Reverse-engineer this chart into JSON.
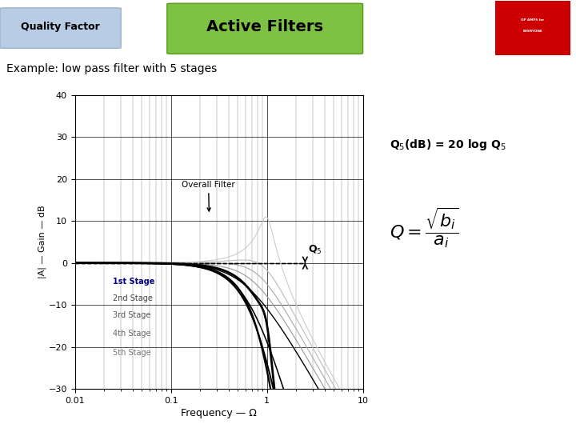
{
  "title": "Active Filters",
  "title_bg": "#7dc242",
  "subtitle_bg": "#b8cce4",
  "subtitle_text": "Quality Factor",
  "example_text": "Example: low pass filter with 5 stages",
  "ylabel": "|A| — Gain — dB",
  "xlabel": "Frequency — Ω",
  "ylim": [
    -30,
    40
  ],
  "bg_color": "#ffffff",
  "plot_bg": "#ffffff",
  "annotation_eq1": "Q$_5$(dB) = 20 log Q$_5$",
  "overall_label": "Overall Filter",
  "q5_label": "Q$_5$",
  "stage_labels": [
    "1st Stage",
    "2nd Stage",
    "3rd Stage",
    "4th Stage",
    "5th Stage"
  ],
  "stages_Q": [
    0.52,
    0.6,
    0.71,
    0.9,
    3.5
  ],
  "stages_omega0": [
    0.62,
    0.72,
    0.82,
    0.92,
    1.0
  ]
}
